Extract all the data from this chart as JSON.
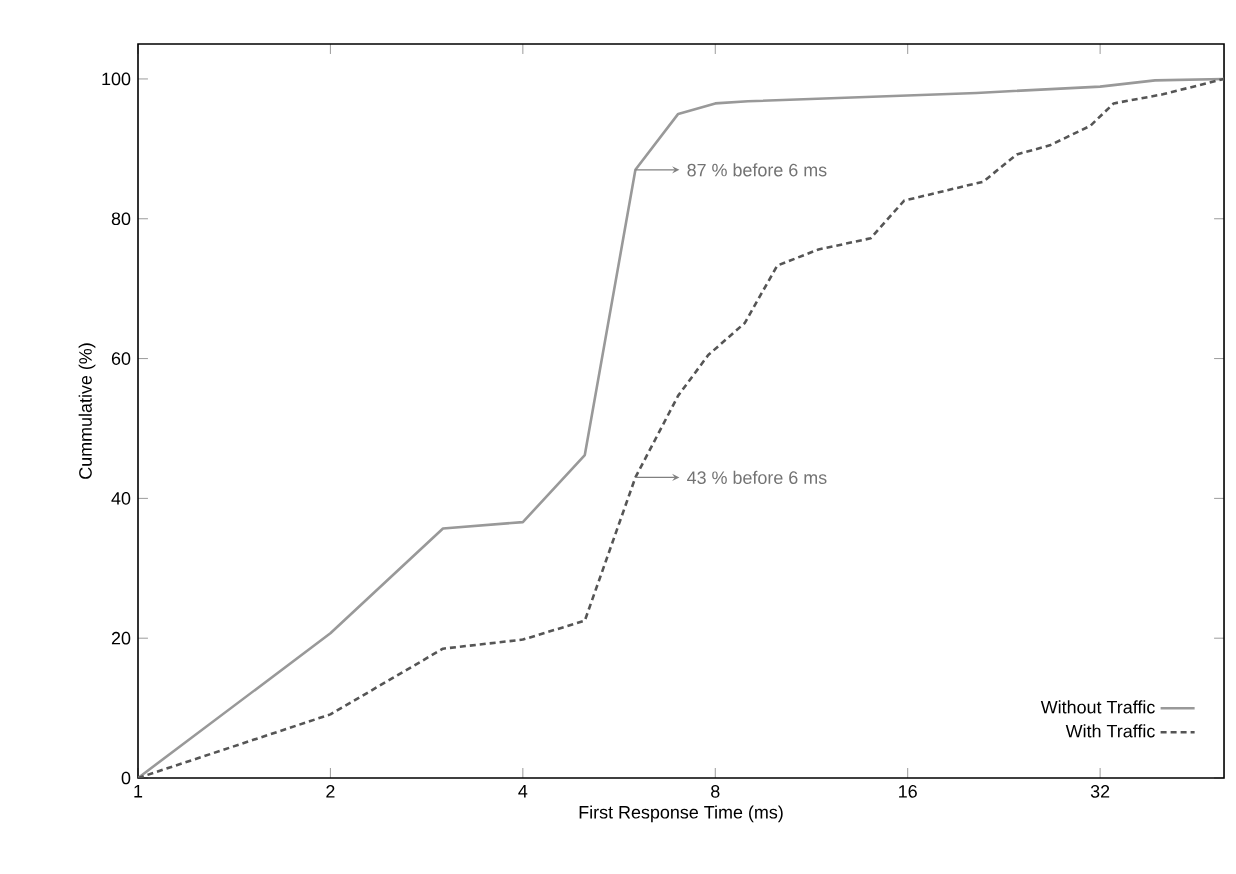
{
  "chart_data": {
    "type": "line",
    "xlabel": "First Response Time (ms)",
    "ylabel": "Cummulative (%)",
    "log": "x",
    "xlim": [
      1,
      50
    ],
    "xticks": [
      1,
      2,
      4,
      8,
      16,
      32
    ],
    "ylim": [
      0,
      105
    ],
    "yticks": [
      0,
      20,
      40,
      60,
      80,
      100
    ],
    "legend": "bottom right",
    "grid": false,
    "marker": "none",
    "series": [
      {
        "name": "Without Traffic",
        "color": "#999999",
        "line_style": "solid",
        "x": [
          1,
          2,
          3,
          4,
          5,
          6,
          7,
          8,
          9,
          20.5,
          32,
          39,
          50
        ],
        "values": [
          0,
          20.7,
          35.7,
          36.6,
          46.2,
          87,
          95,
          96.5,
          96.8,
          98,
          98.9,
          99.8,
          100
        ]
      },
      {
        "name": "With Traffic",
        "color": "#555555",
        "line_style": "dashed",
        "x": [
          1,
          2,
          3,
          4,
          5,
          6,
          7,
          7.8,
          8.9,
          10,
          11.6,
          14,
          15.8,
          21,
          23.7,
          26.7,
          30.9,
          33.6,
          40.1,
          50
        ],
        "values": [
          0,
          9.1,
          18.5,
          19.8,
          22.5,
          43,
          54.7,
          60.5,
          65.1,
          73.3,
          75.6,
          77.2,
          82.6,
          85.3,
          89.2,
          90.5,
          93.3,
          96.5,
          97.8,
          100
        ]
      }
    ],
    "annotations": [
      {
        "text": "87 % before 6 ms",
        "x": 6,
        "y": 87
      },
      {
        "text": "43 % before 6 ms",
        "x": 6,
        "y": 43
      }
    ]
  }
}
